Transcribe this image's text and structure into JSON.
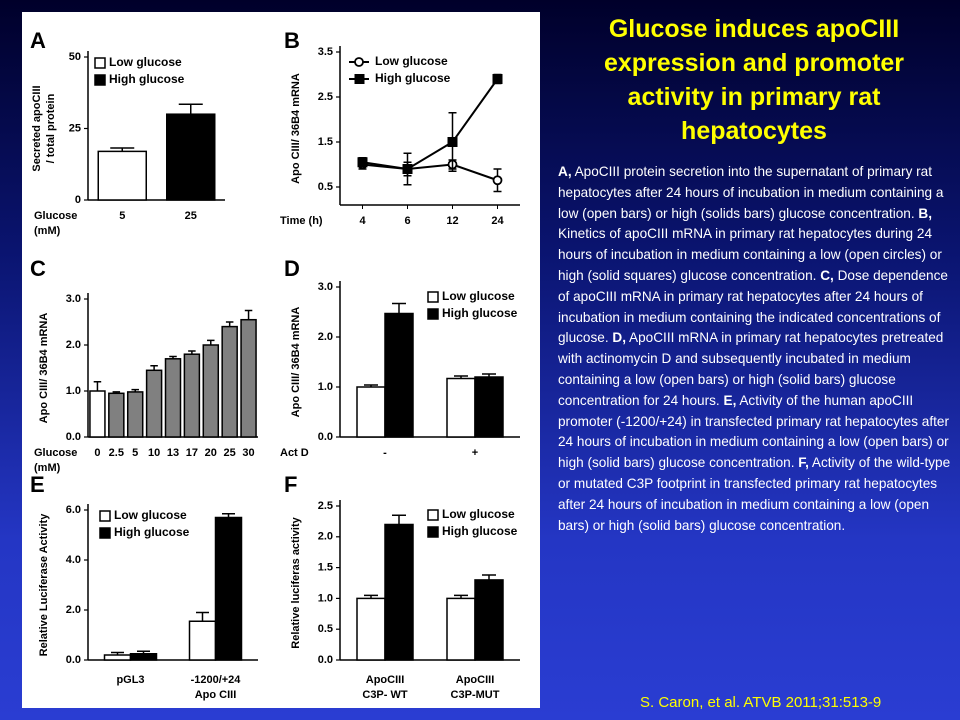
{
  "slide_title": [
    "Glucose induces apoCIII",
    "expression and promoter",
    "activity in primary rat",
    "hepatocytes"
  ],
  "caption": [
    {
      "label": "A,",
      "text": " ApoCIII protein secretion into the supernatant of primary rat hepatocytes after 24 hours of incubation in medium containing a low (open bars) or high (solids bars) glucose concentration. "
    },
    {
      "label": "B,",
      "text": " Kinetics of apoCIII mRNA in primary rat hepatocytes during 24 hours of incubation in medium containing a low (open circles) or high (solid squares) glucose concentration. "
    },
    {
      "label": "C,",
      "text": " Dose dependence of apoCIII mRNA in primary rat hepatocytes after 24 hours of incubation in medium containing the indicated concentrations of glucose. "
    },
    {
      "label": "D,",
      "text": " ApoCIII mRNA in primary rat hepatocytes pretreated with actinomycin D and subsequently incubated in medium containing a low (open bars) or high (solid bars) glucose concentration for 24 hours. "
    },
    {
      "label": "E,",
      "text": " Activity of the human apoCIII promoter (-1200/+24) in transfected primary rat hepatocytes after 24 hours of incubation in medium containing a low (open bars) or high (solid bars) glucose concentration. "
    },
    {
      "label": "F,",
      "text": " Activity of the wild-type or mutated C3P footprint in transfected primary rat hepatocytes after 24 hours of incubation in medium containing a low (open bars) or high (solid bars) glucose concentration."
    }
  ],
  "citation": "S. Caron, et al. ATVB 2011;31:513-9",
  "chart_data": [
    {
      "type": "bar",
      "panel": "A",
      "ylabel": [
        "Secreted apoCIII",
        "/ total protein"
      ],
      "xlabel": [
        "Glucose",
        "(mM)"
      ],
      "categories": [
        "5",
        "25"
      ],
      "ylim": [
        0,
        50
      ],
      "yticks": [
        0,
        25,
        50
      ],
      "series": [
        {
          "name": "Low glucose",
          "color": "#ffffff",
          "values": [
            17,
            null
          ],
          "errors": [
            1.2,
            null
          ]
        },
        {
          "name": "High glucose",
          "color": "#000000",
          "values": [
            null,
            30
          ],
          "errors": [
            null,
            3.5
          ]
        }
      ]
    },
    {
      "type": "line",
      "panel": "B",
      "ylabel": [
        "Apo CIII/ 36B4 mRNA"
      ],
      "xlabel": [
        "Time (h)"
      ],
      "categories": [
        "4",
        "6",
        "12",
        "24"
      ],
      "ylim": [
        0.1,
        3.5
      ],
      "yticks": [
        0.5,
        1.5,
        2.5,
        3.5
      ],
      "series": [
        {
          "name": "Low glucose",
          "color": "#ffffff",
          "marker": "circle",
          "values": [
            1.0,
            0.9,
            1.0,
            0.65
          ],
          "errors": [
            0.1,
            0.15,
            0.1,
            0.25
          ]
        },
        {
          "name": "High glucose",
          "color": "#000000",
          "marker": "square",
          "values": [
            1.05,
            0.9,
            1.5,
            2.9
          ],
          "errors": [
            0.1,
            0.35,
            0.65,
            0.1
          ]
        }
      ]
    },
    {
      "type": "bar",
      "panel": "C",
      "ylabel": [
        "Apo CIII/ 36B4 mRNA"
      ],
      "xlabel": [
        "Glucose",
        "(mM)"
      ],
      "categories": [
        "0",
        "2.5",
        "5",
        "10",
        "13",
        "17",
        "20",
        "25",
        "30"
      ],
      "ylim": [
        0,
        3
      ],
      "yticks": [
        {
          "value": 0,
          "label": "0.0"
        },
        {
          "value": 1,
          "label": "1.0"
        },
        {
          "value": 2,
          "label": "2.0"
        },
        {
          "value": 3,
          "label": "3.0"
        }
      ],
      "series": [
        {
          "values": [
            1.0,
            0.95,
            0.98,
            1.45,
            1.7,
            1.8,
            2.0,
            2.4,
            2.55
          ],
          "errors": [
            0.2,
            0.03,
            0.05,
            0.1,
            0.05,
            0.07,
            0.1,
            0.1,
            0.2
          ],
          "colors": [
            "#ffffff",
            "#808080",
            "#808080",
            "#808080",
            "#808080",
            "#808080",
            "#808080",
            "#808080",
            "#808080"
          ]
        }
      ]
    },
    {
      "type": "bar",
      "panel": "D",
      "ylabel": [
        "Apo CIII/ 36B4 mRNA"
      ],
      "xlabel": [
        "Act D"
      ],
      "categories": [
        "-",
        "+"
      ],
      "ylim": [
        0,
        3
      ],
      "yticks": [
        {
          "value": 0,
          "label": "0.0"
        },
        {
          "value": 1,
          "label": "1.0"
        },
        {
          "value": 2,
          "label": "2.0"
        },
        {
          "value": 3,
          "label": "3.0"
        }
      ],
      "series": [
        {
          "name": "Low glucose",
          "color": "#ffffff",
          "values": [
            1.0,
            1.17
          ],
          "errors": [
            0.04,
            0.05
          ]
        },
        {
          "name": "High glucose",
          "color": "#000000",
          "values": [
            2.47,
            1.2
          ],
          "errors": [
            0.2,
            0.06
          ]
        }
      ]
    },
    {
      "type": "bar",
      "panel": "E",
      "ylabel": [
        "Relative Luciferase Activity"
      ],
      "categories": [
        [
          "pGL3"
        ],
        [
          "-1200/+24",
          "Apo CIII"
        ]
      ],
      "ylim": [
        0,
        6
      ],
      "yticks": [
        {
          "value": 0,
          "label": "0.0"
        },
        {
          "value": 2,
          "label": "2.0"
        },
        {
          "value": 4,
          "label": "4.0"
        },
        {
          "value": 6,
          "label": "6.0"
        }
      ],
      "series": [
        {
          "name": "Low glucose",
          "color": "#ffffff",
          "values": [
            0.2,
            1.55
          ],
          "errors": [
            0.1,
            0.35
          ]
        },
        {
          "name": "High glucose",
          "color": "#000000",
          "values": [
            0.25,
            5.7
          ],
          "errors": [
            0.1,
            0.15
          ]
        }
      ]
    },
    {
      "type": "bar",
      "panel": "F",
      "ylabel": [
        "Relative luciferas activity"
      ],
      "categories": [
        [
          "ApoCIII",
          "C3P- WT"
        ],
        [
          "ApoCIII",
          "C3P-MUT"
        ]
      ],
      "ylim": [
        0,
        2.5
      ],
      "yticks": [
        {
          "value": 0,
          "label": "0.0"
        },
        {
          "value": 0.5,
          "label": "0.5"
        },
        {
          "value": 1,
          "label": "1.0"
        },
        {
          "value": 1.5,
          "label": "1.5"
        },
        {
          "value": 2,
          "label": "2.0"
        },
        {
          "value": 2.5,
          "label": "2.5"
        }
      ],
      "series": [
        {
          "name": "Low glucose",
          "color": "#ffffff",
          "values": [
            1.0,
            1.0
          ],
          "errors": [
            0.05,
            0.05
          ]
        },
        {
          "name": "High glucose",
          "color": "#000000",
          "values": [
            2.2,
            1.3
          ],
          "errors": [
            0.15,
            0.08
          ]
        }
      ]
    }
  ]
}
